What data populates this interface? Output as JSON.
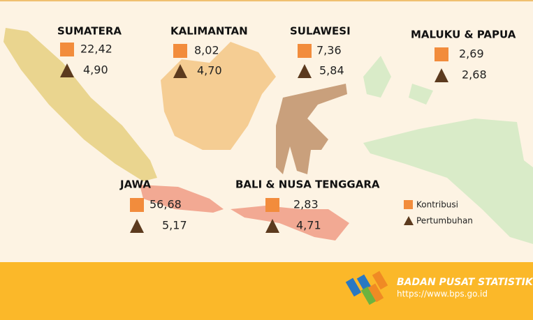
{
  "regions": [
    {
      "name": "SUMATERA",
      "kontribusi": "22,42",
      "pertumbuhan": "4,90"
    },
    {
      "name": "KALIMANTAN",
      "kontribusi": "8,02",
      "pertumbuhan": "4,70"
    },
    {
      "name": "SULAWESI",
      "kontribusi": "7,36",
      "pertumbuhan": "5,84"
    },
    {
      "name": "MALUKU & PAPUA",
      "kontribusi": "2,69",
      "pertumbuhan": "2,68"
    },
    {
      "name": "JAWA",
      "kontribusi": "56,68",
      "pertumbuhan": "5,17"
    },
    {
      "name": "BALI & NUSA TENGGARA",
      "kontribusi": "2,83",
      "pertumbuhan": "4,71"
    }
  ],
  "legend": {
    "kontribusi": "Kontribusi",
    "pertumbuhan": "Pertumbuhan"
  },
  "footer": {
    "organization": "BADAN PUSAT STATISTIK",
    "url": "https://www.bps.go.id"
  }
}
